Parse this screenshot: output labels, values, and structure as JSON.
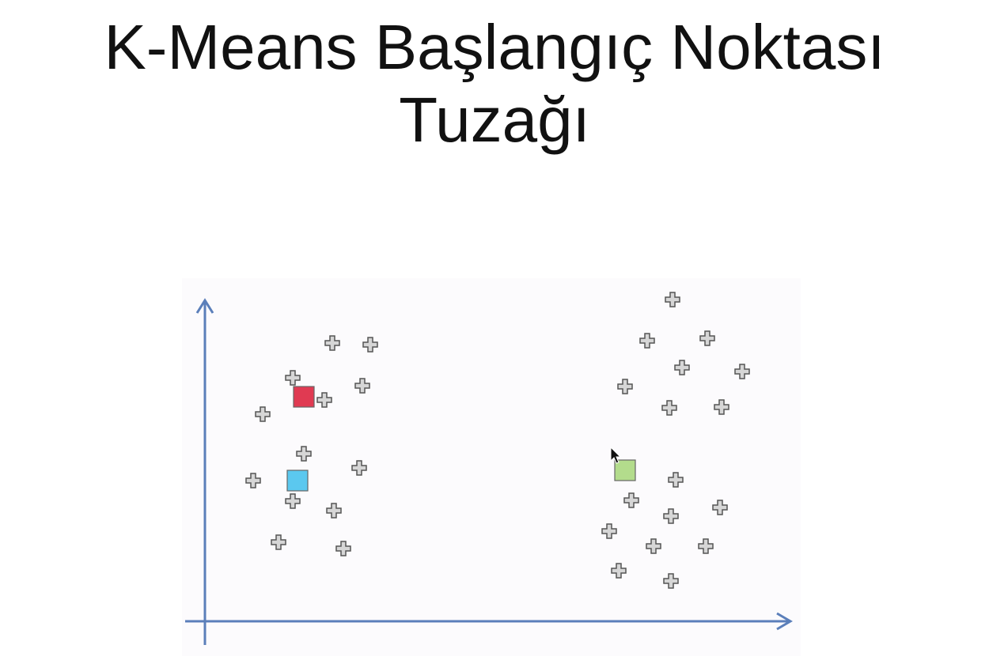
{
  "title": {
    "line1": "K-Means Başlangıç Noktası",
    "line2": "Tuzağı"
  },
  "colors": {
    "axis": "#5b7fba",
    "point_fill": "#d6d6d6",
    "point_stroke": "#555555",
    "centroid_red": "#e03a52",
    "centroid_blue": "#5bc8ef",
    "centroid_green": "#b3dc8c",
    "panel_bg": "#fcfbfd"
  },
  "points": [
    [
      198,
      82
    ],
    [
      246,
      84
    ],
    [
      148,
      126
    ],
    [
      236,
      136
    ],
    [
      188,
      154
    ],
    [
      110,
      172
    ],
    [
      162,
      222
    ],
    [
      232,
      240
    ],
    [
      98,
      256
    ],
    [
      148,
      282
    ],
    [
      200,
      294
    ],
    [
      130,
      334
    ],
    [
      212,
      342
    ],
    [
      628,
      27
    ],
    [
      596,
      79
    ],
    [
      672,
      76
    ],
    [
      640,
      113
    ],
    [
      716,
      118
    ],
    [
      568,
      137
    ],
    [
      624,
      164
    ],
    [
      690,
      163
    ],
    [
      632,
      255
    ],
    [
      576,
      281
    ],
    [
      688,
      290
    ],
    [
      626,
      301
    ],
    [
      548,
      320
    ],
    [
      604,
      339
    ],
    [
      670,
      339
    ],
    [
      560,
      370
    ],
    [
      626,
      383
    ]
  ],
  "centroids": [
    {
      "name": "red",
      "pos": [
        162,
        150
      ]
    },
    {
      "name": "blue",
      "pos": [
        154,
        256
      ]
    },
    {
      "name": "green",
      "pos": [
        568,
        243
      ]
    }
  ],
  "cursor": [
    550,
    214
  ]
}
